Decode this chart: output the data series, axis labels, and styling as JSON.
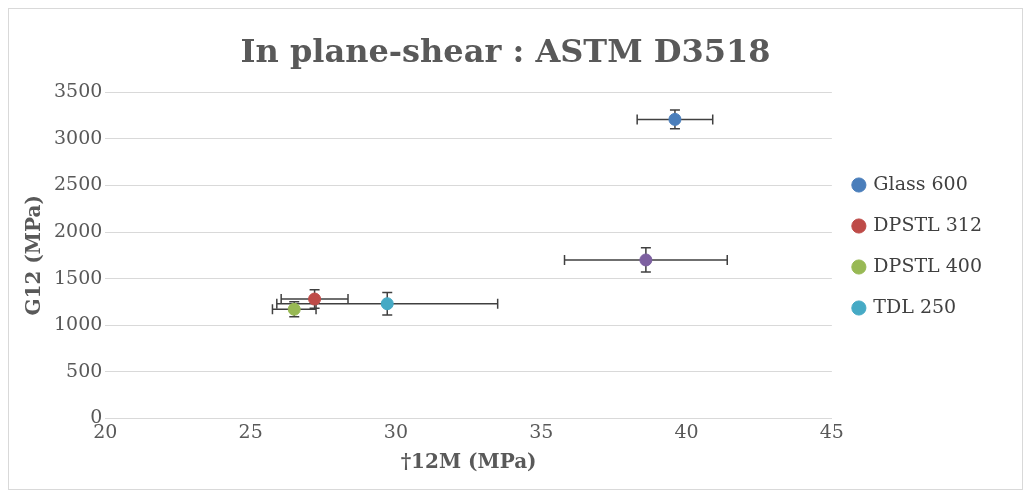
{
  "chart_data": {
    "type": "scatter",
    "title": "In plane-shear : ASTM D3518",
    "xlabel": "†12M (MPa)",
    "ylabel": "G12 (MPa)",
    "xlim": [
      20,
      45
    ],
    "xticks": [
      20,
      25,
      30,
      35,
      40,
      45
    ],
    "ylim": [
      0,
      3500
    ],
    "yticks": [
      0,
      500,
      1000,
      1500,
      2000,
      2500,
      3000,
      3500
    ],
    "grid": "y",
    "legend": "right",
    "marker": "circle",
    "series": [
      {
        "name": "Glass 600",
        "color": "#4a7ebb",
        "x": [
          39.6
        ],
        "values": [
          3210
        ],
        "errors": [
          100
        ],
        "xerrors": [
          1.3
        ]
      },
      {
        "name": "DPSTL 312",
        "color": "#be4b48",
        "x": [
          27.2
        ],
        "values": [
          1280
        ],
        "errors": [
          100
        ],
        "xerrors": [
          1.15
        ]
      },
      {
        "name": "DPSTL 400",
        "color": "#98b954",
        "x": [
          26.5
        ],
        "values": [
          1170
        ],
        "errors": [
          80
        ],
        "xerrors": [
          0.75
        ]
      },
      {
        "color": "#7d60a0",
        "x": [
          38.6
        ],
        "values": [
          1700
        ],
        "errors": [
          130
        ],
        "xerrors": [
          2.8
        ]
      },
      {
        "name": "TDL 250",
        "color": "#46aac5",
        "x": [
          29.7
        ],
        "values": [
          1230
        ],
        "errors": [
          120
        ],
        "xerrors": [
          3.8
        ]
      }
    ]
  }
}
